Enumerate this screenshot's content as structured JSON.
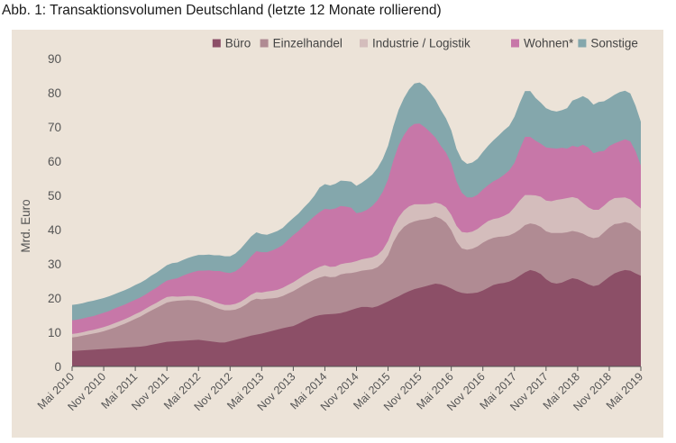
{
  "figure_title": "Abb. 1: Transaktionsvolumen Deutschland (letzte 12 Monate rollierend)",
  "chart_data": {
    "type": "area",
    "stacked": true,
    "title": "",
    "ylabel": "Mrd. Euro",
    "xlabel": "",
    "ylim": [
      0,
      90
    ],
    "yticks": [
      "0",
      "10",
      "20",
      "30",
      "40",
      "50",
      "60",
      "70",
      "80",
      "90"
    ],
    "grid": false,
    "legend_position": "top-right",
    "x_tick_labels": [
      "Mai 2010",
      "Nov 2010",
      "Mai 2011",
      "Nov 2011",
      "Mai 2012",
      "Nov 2012",
      "Mai 2013",
      "Nov 2013",
      "Mai 2014",
      "Nov 2014",
      "Mai 2015",
      "Nov 2015",
      "Mai 2016",
      "Nov 2016",
      "Mai 2017",
      "Nov 2017",
      "Mai 2018",
      "Nov 2018",
      "Mai 2019"
    ],
    "x_tick_index": [
      0,
      6,
      12,
      18,
      24,
      30,
      36,
      42,
      48,
      54,
      60,
      66,
      72,
      78,
      84,
      90,
      96,
      102,
      108
    ],
    "colors": {
      "Büro": "#8c4f67",
      "Einzelhandel": "#b08b93",
      "Industrie / Logistik": "#d4bdbc",
      "Wohnen*": "#c777a8",
      "Sonstige": "#84a7ac"
    },
    "series": [
      {
        "name": "Büro",
        "values": [
          4.5,
          4.6,
          4.7,
          4.8,
          4.9,
          5.0,
          5.1,
          5.2,
          5.3,
          5.4,
          5.5,
          5.6,
          5.7,
          5.8,
          6.0,
          6.3,
          6.6,
          6.9,
          7.2,
          7.3,
          7.4,
          7.5,
          7.6,
          7.7,
          7.8,
          7.6,
          7.4,
          7.2,
          7.0,
          7.0,
          7.4,
          7.8,
          8.2,
          8.6,
          9.0,
          9.3,
          9.6,
          10.0,
          10.4,
          10.8,
          11.2,
          11.5,
          11.8,
          12.5,
          13.3,
          14.0,
          14.6,
          15.0,
          15.2,
          15.3,
          15.4,
          15.6,
          16.0,
          16.5,
          17.0,
          17.4,
          17.4,
          17.2,
          17.6,
          18.3,
          19.0,
          19.8,
          20.5,
          21.3,
          22.0,
          22.6,
          23.0,
          23.4,
          23.8,
          24.2,
          24.0,
          23.5,
          22.8,
          22.0,
          21.5,
          21.3,
          21.4,
          21.6,
          22.2,
          23.0,
          23.8,
          24.2,
          24.4,
          24.8,
          25.5,
          26.5,
          27.5,
          28.2,
          27.8,
          27.0,
          25.5,
          24.5,
          24.2,
          24.5,
          25.2,
          25.8,
          25.5,
          24.8,
          24.0,
          23.5,
          23.8,
          25.0,
          26.2,
          27.2,
          27.8,
          28.2,
          28.0,
          27.2,
          26.5
        ]
      },
      {
        "name": "Einzelhandel",
        "values": [
          4.0,
          4.1,
          4.3,
          4.5,
          4.7,
          4.9,
          5.2,
          5.6,
          6.0,
          6.5,
          7.0,
          7.6,
          8.2,
          8.8,
          9.5,
          10.0,
          10.5,
          11.0,
          11.5,
          11.7,
          11.8,
          11.8,
          11.8,
          11.6,
          11.3,
          11.0,
          10.7,
          10.2,
          9.8,
          9.4,
          9.0,
          8.8,
          9.0,
          9.5,
          10.2,
          10.5,
          10.0,
          9.8,
          9.5,
          9.3,
          9.4,
          9.8,
          10.2,
          10.4,
          10.5,
          10.6,
          10.8,
          11.0,
          11.2,
          10.8,
          10.8,
          11.3,
          11.2,
          10.8,
          10.6,
          10.6,
          10.8,
          11.2,
          11.4,
          12.0,
          13.5,
          16.5,
          18.5,
          19.5,
          19.8,
          19.8,
          19.8,
          19.6,
          19.5,
          19.6,
          19.2,
          18.5,
          17.0,
          14.5,
          13.0,
          12.8,
          13.0,
          13.5,
          14.0,
          14.0,
          13.8,
          13.7,
          13.6,
          13.5,
          13.5,
          13.5,
          13.8,
          13.6,
          13.7,
          13.8,
          14.0,
          14.5,
          14.8,
          14.5,
          14.0,
          13.8,
          13.8,
          14.0,
          14.0,
          14.0,
          14.0,
          14.2,
          14.4,
          14.4,
          14.0,
          14.0,
          13.8,
          13.4,
          13.0
        ]
      },
      {
        "name": "Industrie / Logistik",
        "values": [
          1.0,
          1.0,
          1.0,
          1.1,
          1.1,
          1.2,
          1.2,
          1.2,
          1.3,
          1.3,
          1.3,
          1.3,
          1.4,
          1.4,
          1.4,
          1.5,
          1.5,
          1.6,
          1.6,
          1.5,
          1.2,
          1.2,
          1.2,
          1.3,
          1.3,
          1.4,
          1.5,
          1.5,
          1.6,
          1.6,
          1.6,
          1.7,
          1.7,
          1.8,
          1.8,
          1.9,
          2.0,
          2.1,
          2.2,
          2.3,
          2.4,
          2.5,
          2.6,
          2.7,
          2.8,
          2.9,
          3.0,
          3.1,
          3.2,
          3.0,
          3.0,
          3.0,
          3.0,
          3.1,
          3.2,
          3.3,
          3.4,
          3.5,
          3.6,
          3.8,
          4.2,
          4.4,
          4.6,
          4.8,
          5.0,
          5.0,
          4.6,
          4.4,
          4.2,
          4.1,
          4.3,
          4.5,
          4.5,
          4.6,
          4.8,
          5.0,
          5.0,
          5.1,
          5.2,
          5.5,
          5.5,
          5.5,
          6.0,
          6.5,
          7.5,
          8.5,
          8.8,
          8.3,
          8.5,
          8.8,
          9.0,
          9.3,
          9.7,
          9.9,
          10.0,
          9.9,
          9.8,
          9.0,
          8.5,
          8.3,
          8.0,
          7.8,
          7.8,
          7.6,
          7.5,
          7.2,
          7.0,
          6.8,
          6.7
        ]
      },
      {
        "name": "Wohnen*",
        "values": [
          4.0,
          4.0,
          4.0,
          4.0,
          4.0,
          4.1,
          4.2,
          4.2,
          4.3,
          4.3,
          4.3,
          4.3,
          4.2,
          4.2,
          4.2,
          4.3,
          4.4,
          4.6,
          4.8,
          5.0,
          5.4,
          6.0,
          6.5,
          7.0,
          7.6,
          8.0,
          8.5,
          9.0,
          9.5,
          9.5,
          9.3,
          9.5,
          10.0,
          10.5,
          11.2,
          12.0,
          11.8,
          11.5,
          11.8,
          12.2,
          12.5,
          13.2,
          13.8,
          14.0,
          14.5,
          15.0,
          15.5,
          16.0,
          16.5,
          16.8,
          17.0,
          17.0,
          16.5,
          16.0,
          14.0,
          13.8,
          14.2,
          15.0,
          16.0,
          17.0,
          18.0,
          19.5,
          21.0,
          22.0,
          23.0,
          23.5,
          23.6,
          22.5,
          21.0,
          19.0,
          17.0,
          16.0,
          15.0,
          13.0,
          11.5,
          10.3,
          10.0,
          10.0,
          10.3,
          10.5,
          11.0,
          11.5,
          12.0,
          12.5,
          13.0,
          15.0,
          17.0,
          17.0,
          16.0,
          15.5,
          15.5,
          15.5,
          15.0,
          15.0,
          14.5,
          15.0,
          15.0,
          17.0,
          17.5,
          16.5,
          17.0,
          16.0,
          16.0,
          16.0,
          16.5,
          17.0,
          17.0,
          15.5,
          12.5
        ]
      },
      {
        "name": "Sonstige",
        "values": [
          4.5,
          4.5,
          4.5,
          4.5,
          4.5,
          4.4,
          4.3,
          4.3,
          4.2,
          4.2,
          4.2,
          4.2,
          4.3,
          4.3,
          4.3,
          4.4,
          4.4,
          4.4,
          4.5,
          4.7,
          4.6,
          4.6,
          4.6,
          4.6,
          4.6,
          4.6,
          4.6,
          4.6,
          4.6,
          4.7,
          4.9,
          5.2,
          5.5,
          5.8,
          5.8,
          5.5,
          5.3,
          5.1,
          5.1,
          5.0,
          5.0,
          5.0,
          5.0,
          5.1,
          5.3,
          5.5,
          6.0,
          7.2,
          7.2,
          7.0,
          7.2,
          7.4,
          7.5,
          7.6,
          8.0,
          8.6,
          9.0,
          9.2,
          9.4,
          9.6,
          9.8,
          10.0,
          10.4,
          10.8,
          11.2,
          11.8,
          12.0,
          12.0,
          11.5,
          11.0,
          10.5,
          10.0,
          9.7,
          9.5,
          9.6,
          9.8,
          10.2,
          10.5,
          11.0,
          11.5,
          12.0,
          12.6,
          13.0,
          13.0,
          13.5,
          13.5,
          13.4,
          13.4,
          12.5,
          12.0,
          11.5,
          11.0,
          10.8,
          11.0,
          11.8,
          13.2,
          14.2,
          14.2,
          14.2,
          14.2,
          14.5,
          14.5,
          14.0,
          14.2,
          14.4,
          14.2,
          14.0,
          13.3,
          12.8
        ]
      }
    ]
  }
}
